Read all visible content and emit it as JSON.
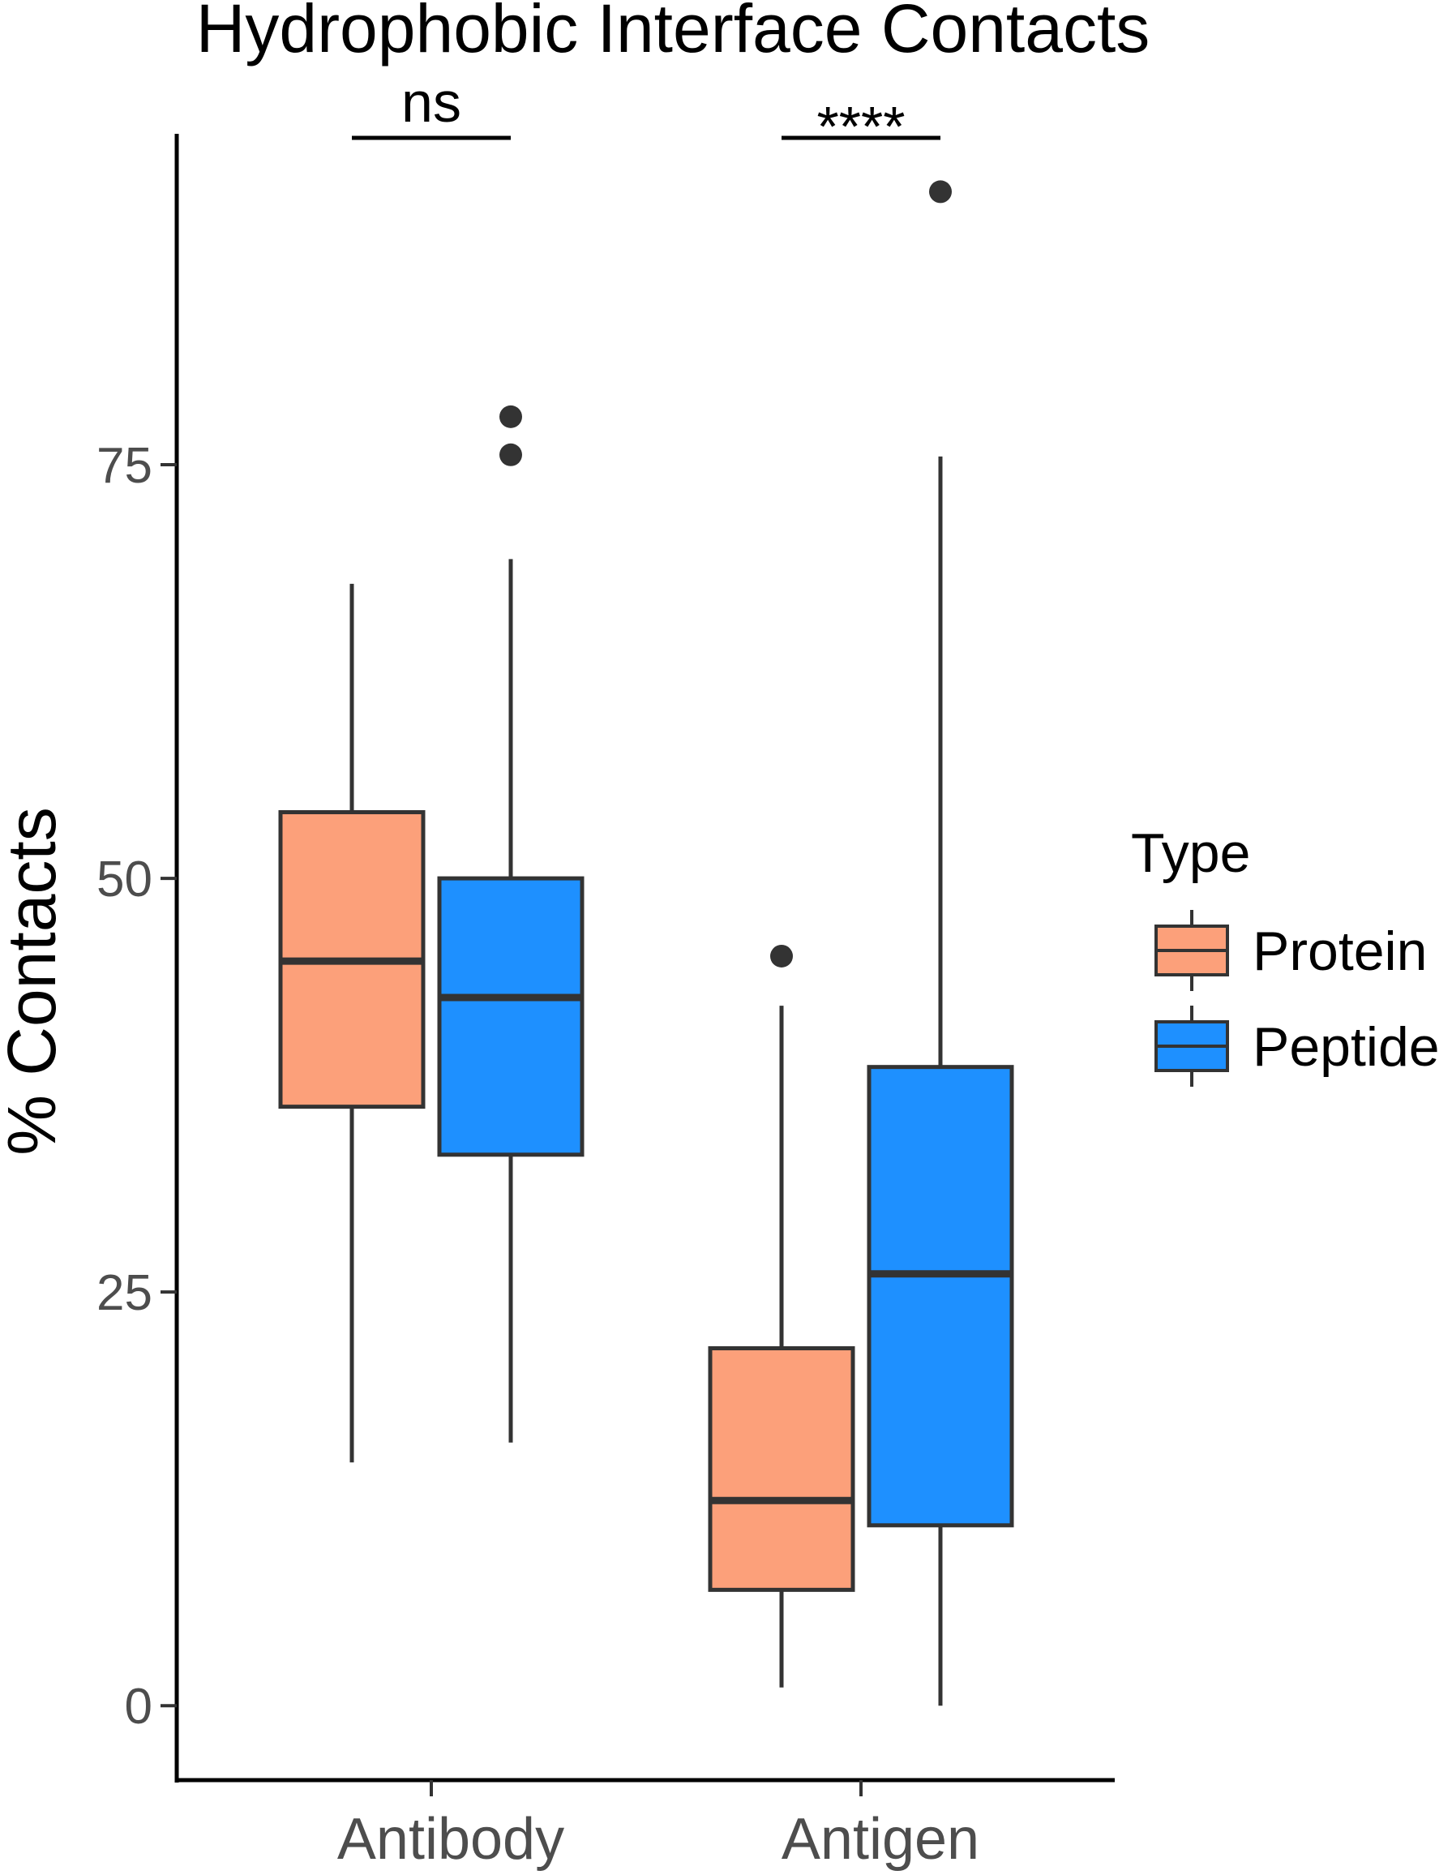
{
  "chart_data": {
    "type": "boxplot",
    "title": "Hydrophobic Interface Contacts",
    "xlabel": "",
    "ylabel": "% Contacts",
    "ylim": [
      -4.5,
      95
    ],
    "yticks": [
      0,
      25,
      50,
      75
    ],
    "categories": [
      "Antibody",
      "Antigen"
    ],
    "legend": {
      "title": "Type",
      "position": "right",
      "entries": [
        {
          "name": "Protein",
          "color": "#FCA07A"
        },
        {
          "name": "Peptide",
          "color": "#1E90FF"
        }
      ]
    },
    "series": [
      {
        "name": "Protein",
        "color": "#FCA07A",
        "boxes": [
          {
            "category": "Antibody",
            "whisker_low": 14.7,
            "q1": 36.2,
            "median": 45.0,
            "q3": 54.0,
            "whisker_high": 67.8,
            "outliers": []
          },
          {
            "category": "Antigen",
            "whisker_low": 1.1,
            "q1": 7.0,
            "median": 12.4,
            "q3": 21.6,
            "whisker_high": 42.3,
            "outliers": [
              45.3
            ]
          }
        ]
      },
      {
        "name": "Peptide",
        "color": "#1E90FF",
        "boxes": [
          {
            "category": "Antibody",
            "whisker_low": 15.9,
            "q1": 33.3,
            "median": 42.8,
            "q3": 50.0,
            "whisker_high": 69.3,
            "outliers": [
              75.6,
              77.9
            ]
          },
          {
            "category": "Antigen",
            "whisker_low": 0.0,
            "q1": 10.9,
            "median": 26.1,
            "q3": 38.6,
            "whisker_high": 75.5,
            "outliers": [
              91.5
            ]
          }
        ]
      }
    ],
    "significance": [
      {
        "category": "Antibody",
        "label": "ns"
      },
      {
        "category": "Antigen",
        "label": "****"
      }
    ]
  }
}
